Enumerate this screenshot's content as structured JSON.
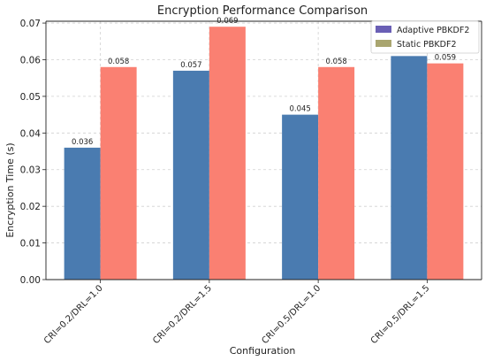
{
  "chart_data": {
    "type": "bar",
    "title": "Encryption Performance Comparison",
    "xlabel": "Configuration",
    "ylabel": "Encryption Time (s)",
    "categories": [
      "CRI=0.2/DRL=1.0",
      "CRI=0.2/DRL=1.5",
      "CRI=0.5/DRL=1.0",
      "CRI=0.5/DRL=1.5"
    ],
    "series": [
      {
        "name": "Adaptive PBKDF2",
        "values": [
          0.036,
          0.057,
          0.045,
          0.061
        ],
        "color": "#4a7bb0",
        "legend_color": "#6a5fb5"
      },
      {
        "name": "Static PBKDF2",
        "values": [
          0.058,
          0.069,
          0.058,
          0.059
        ],
        "color": "#fa8072",
        "legend_color": "#a9a56f"
      }
    ],
    "value_labels": [
      [
        "0.036",
        "0.057",
        "0.045",
        "0.061"
      ],
      [
        "0.058",
        "0.069",
        "0.058",
        "0.059"
      ]
    ],
    "yticks": [
      "0.00",
      "0.01",
      "0.02",
      "0.03",
      "0.04",
      "0.05",
      "0.06",
      "0.07"
    ],
    "ylim": [
      0,
      0.0705
    ],
    "grid": true,
    "legend_position": "top-right"
  }
}
